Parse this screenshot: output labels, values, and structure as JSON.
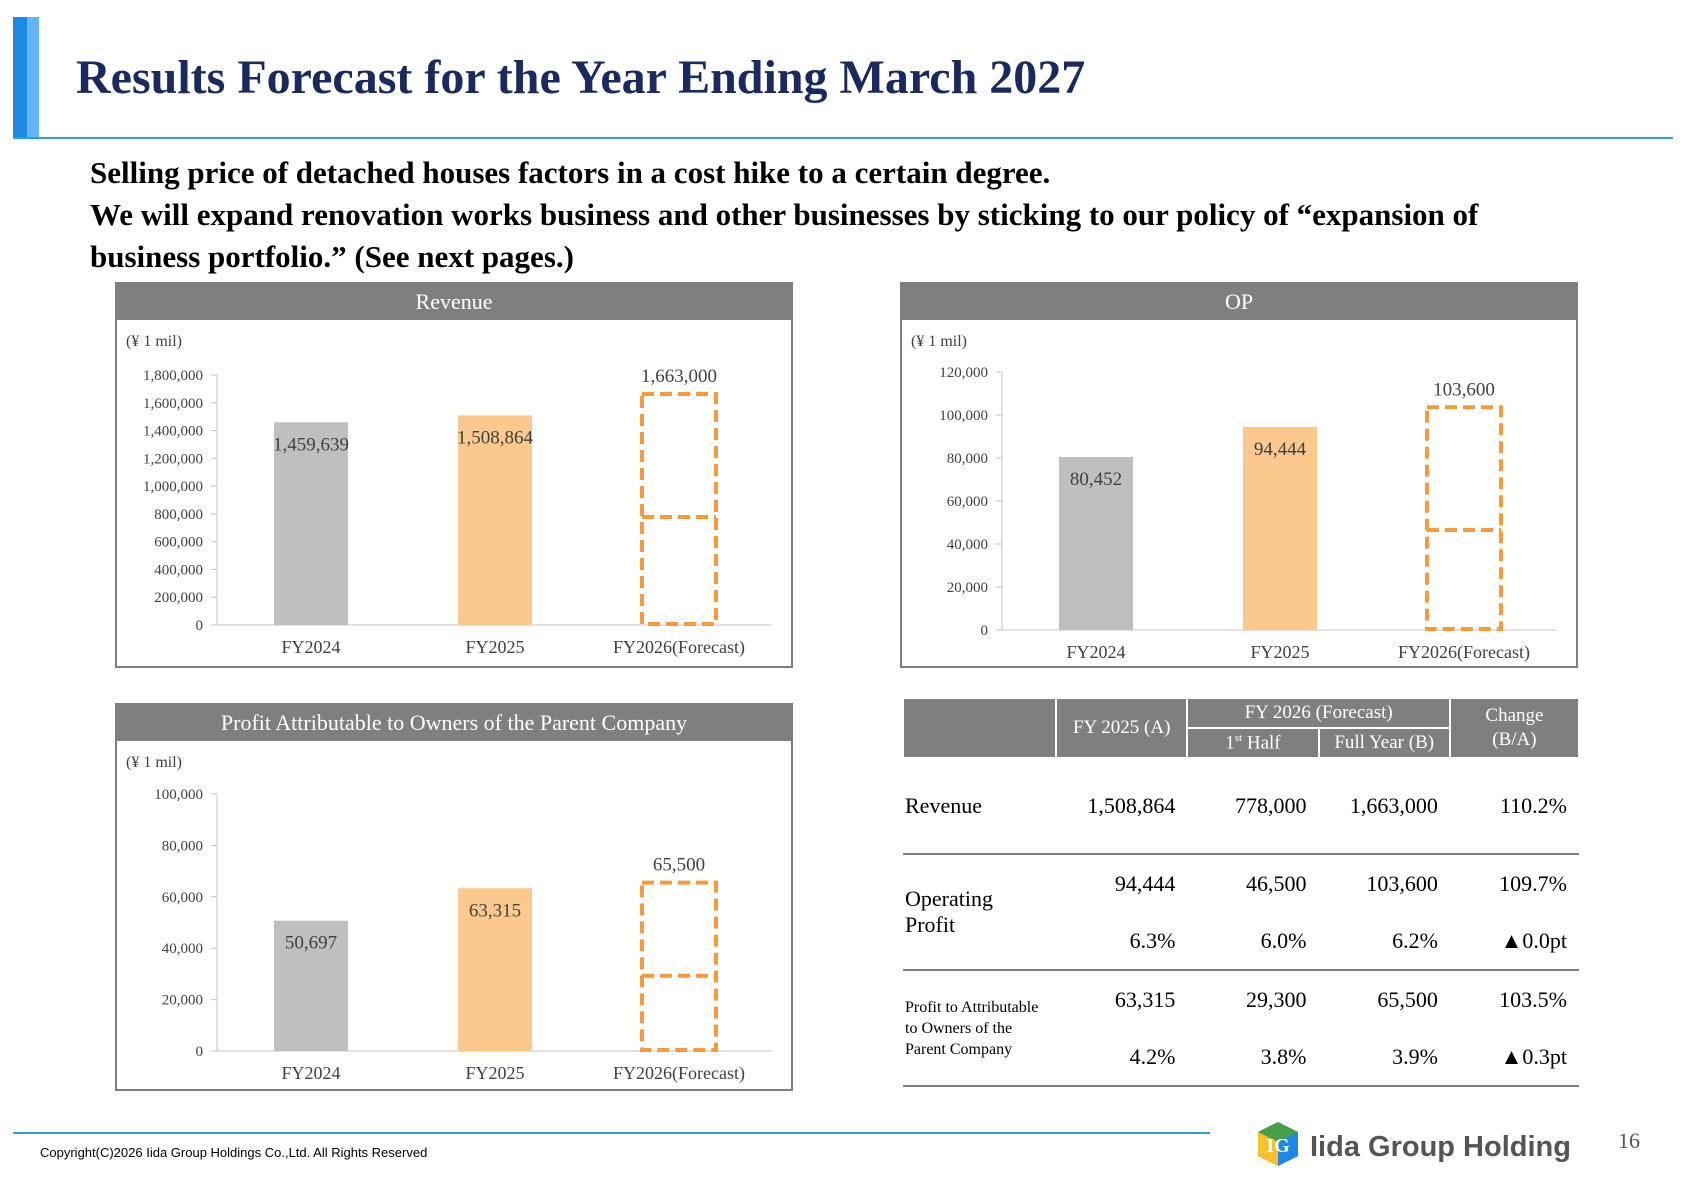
{
  "title": "Results Forecast for the Year Ending March 2027",
  "subtitle": [
    "Selling price of detached houses factors in a cost hike to a certain degree.",
    "We will expand renovation works business and other businesses by sticking to our policy of “expansion of",
    "business portfolio.”  (See next pages.)"
  ],
  "colors": {
    "fy2024": "#bfbfbf",
    "fy2025": "#fbc98e",
    "forecast": "#f79a3b",
    "header": "#7f7f7f",
    "title": "#1a2a5e",
    "accent": "#2f9fd8"
  },
  "chart_data": [
    {
      "type": "bar",
      "title": "Revenue",
      "unit": "(¥ 1 mil)",
      "categories": [
        "FY2024",
        "FY2025",
        "FY2026(Forecast)"
      ],
      "values": [
        1459639,
        1508864,
        1663000
      ],
      "value_labels": [
        "1,459,639",
        "1,508,864",
        "1,663,000"
      ],
      "first_half": 778000,
      "ylim": [
        0,
        1800000
      ],
      "ticks": [
        0,
        200000,
        400000,
        600000,
        800000,
        1000000,
        1200000,
        1400000,
        1600000,
        1800000
      ],
      "tick_labels": [
        "0",
        "200,000",
        "400,000",
        "600,000",
        "800,000",
        "1,000,000",
        "1,200,000",
        "1,400,000",
        "1,600,000",
        "1,800,000"
      ]
    },
    {
      "type": "bar",
      "title": "OP",
      "unit": "(¥ 1 mil)",
      "categories": [
        "FY2024",
        "FY2025",
        "FY2026(Forecast)"
      ],
      "values": [
        80452,
        94444,
        103600
      ],
      "value_labels": [
        "80,452",
        "94,444",
        "103,600"
      ],
      "first_half": 46500,
      "ylim": [
        0,
        120000
      ],
      "ticks": [
        0,
        20000,
        40000,
        60000,
        80000,
        100000,
        120000
      ],
      "tick_labels": [
        "0",
        "20,000",
        "40,000",
        "60,000",
        "80,000",
        "100,000",
        "120,000"
      ]
    },
    {
      "type": "bar",
      "title": "Profit Attributable to Owners of the Parent Company",
      "unit": "(¥ 1 mil)",
      "categories": [
        "FY2024",
        "FY2025",
        "FY2026(Forecast)"
      ],
      "values": [
        50697,
        63315,
        65500
      ],
      "value_labels": [
        "50,697",
        "63,315",
        "65,500"
      ],
      "first_half": 29300,
      "ylim": [
        0,
        100000
      ],
      "ticks": [
        0,
        20000,
        40000,
        60000,
        80000,
        100000
      ],
      "tick_labels": [
        "0",
        "20,000",
        "40,000",
        "60,000",
        "80,000",
        "100,000"
      ]
    }
  ],
  "table": {
    "head": {
      "fy2025": "FY 2025 (A)",
      "fy2026": "FY 2026 (Forecast)",
      "half_pre": "1",
      "half_sup": "st",
      "half_post": " Half",
      "full": "Full Year (B)",
      "change1": "Change",
      "change2": "(B/A)"
    },
    "revenue": {
      "label": "Revenue",
      "a": "1,508,864",
      "half": "778,000",
      "full": "1,663,000",
      "chg": "110.2%"
    },
    "op": {
      "label": "Operating Profit",
      "a": "94,444",
      "half": "46,500",
      "full": "103,600",
      "chg": "109.7%",
      "a2": "6.3%",
      "half2": "6.0%",
      "full2": "6.2%",
      "chg2": "▲0.0pt"
    },
    "np": {
      "label1": "Profit to Attributable",
      "label2": "to Owners of the",
      "label3": "Parent Company",
      "a": "63,315",
      "half": "29,300",
      "full": "65,500",
      "chg": "103.5%",
      "a2": "4.2%",
      "half2": "3.8%",
      "full2": "3.9%",
      "chg2": "▲0.3pt"
    }
  },
  "footer": {
    "copyright": "Copyright(C)2026 Iida Group Holdings Co.,Ltd. All Rights Reserved",
    "page": "16",
    "logo_mark": "IG",
    "logo_text": "Iida Group Holdings"
  }
}
